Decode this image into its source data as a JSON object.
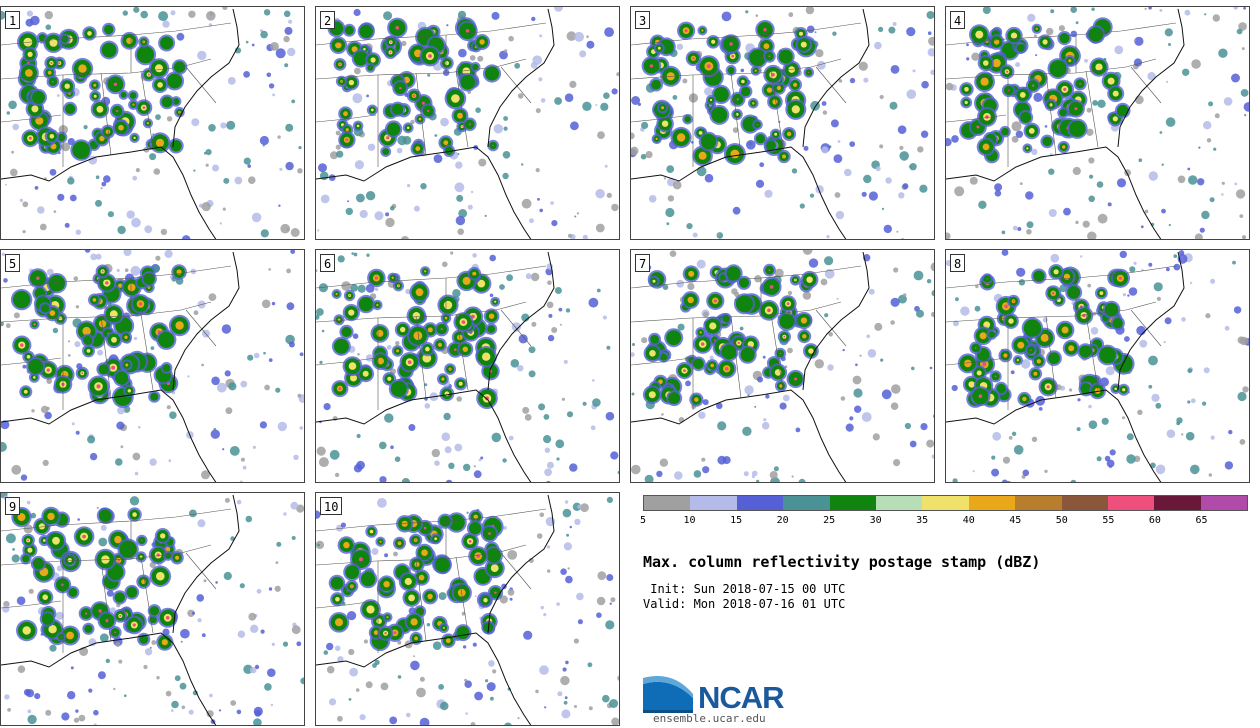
{
  "panels": [
    {
      "label": "1"
    },
    {
      "label": "2"
    },
    {
      "label": "3"
    },
    {
      "label": "4"
    },
    {
      "label": "5"
    },
    {
      "label": "6"
    },
    {
      "label": "7"
    },
    {
      "label": "8"
    },
    {
      "label": "9"
    },
    {
      "label": "10"
    }
  ],
  "colorbar": {
    "colors": [
      "#a0a0a0",
      "#b4bbe8",
      "#5560d6",
      "#4a9296",
      "#0f840f",
      "#b7dfb7",
      "#efe16a",
      "#e9a71a",
      "#b77e2e",
      "#8b573a",
      "#ee4f7c",
      "#6a1839",
      "#b04ba9"
    ],
    "ticks": [
      "5",
      "10",
      "15",
      "20",
      "25",
      "30",
      "35",
      "40",
      "45",
      "50",
      "55",
      "60",
      "65"
    ]
  },
  "title": "Max. column reflectivity postage stamp (dBZ)",
  "init": " Init: Sun 2018-07-15 00 UTC",
  "valid": "Valid: Mon 2018-07-16 01 UTC",
  "logo": {
    "word": "NCAR",
    "url": "ensemble.ucar.edu"
  }
}
